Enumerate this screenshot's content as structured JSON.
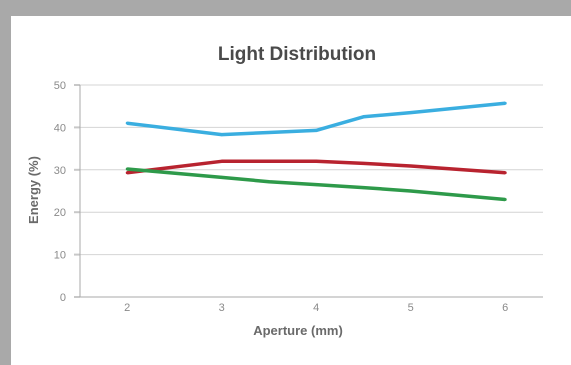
{
  "chart_data": {
    "type": "line",
    "title": "Light Distribution",
    "xlabel": "Aperture (mm)",
    "ylabel": "Energy (%)",
    "x": [
      2,
      3,
      3.5,
      4,
      4.5,
      5,
      6
    ],
    "xlim": [
      1.5,
      6.4
    ],
    "ylim": [
      0,
      50
    ],
    "xticks": [
      "2",
      "3",
      "4",
      "5",
      "6"
    ],
    "yticks": [
      "0",
      "10",
      "20",
      "30",
      "40",
      "50"
    ],
    "grid": "horizontal",
    "series": [
      {
        "color": "#3aaee0",
        "values": [
          41,
          38.3,
          38.8,
          39.3,
          42.5,
          43.5,
          45.7
        ]
      },
      {
        "color": "#b8232f",
        "values": [
          29.3,
          32,
          32,
          32,
          31.5,
          30.9,
          29.3
        ]
      },
      {
        "color": "#2e9a4a",
        "values": [
          30.2,
          28.2,
          27.2,
          26.5,
          25.8,
          25,
          23
        ]
      }
    ]
  }
}
